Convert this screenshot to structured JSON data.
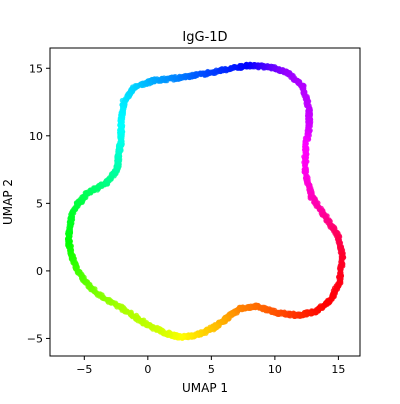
{
  "chart_data": {
    "type": "scatter",
    "title": "IgG-1D",
    "xlabel": "UMAP 1",
    "ylabel": "UMAP 2",
    "xlim": [
      -7.7,
      16.7
    ],
    "ylim": [
      -6.3,
      16.5
    ],
    "xticks": [
      -5,
      0,
      5,
      10,
      15
    ],
    "yticks": [
      -5,
      0,
      5,
      10,
      15
    ],
    "grid": false,
    "legend": "none",
    "colormap": "hsv",
    "series": [
      {
        "closed": true,
        "x": [
          7.9,
          9.6,
          11.0,
          12.2,
          12.7,
          12.7,
          12.4,
          12.4,
          12.9,
          14.0,
          15.0,
          15.3,
          15.1,
          14.4,
          13.2,
          11.8,
          10.2,
          8.5,
          7.2,
          6.2,
          5.2,
          3.7,
          2.5,
          1.4,
          0.0,
          -2.0,
          -4.0,
          -5.2,
          -5.9,
          -6.2,
          -6.2,
          -5.9,
          -4.8,
          -3.3,
          -2.4,
          -2.3,
          -2.1,
          -2.1,
          -1.9,
          -1.1,
          0.5,
          2.5,
          4.5,
          6.5
        ],
        "y": [
          15.2,
          15.1,
          14.7,
          13.6,
          12.0,
          10.5,
          9.2,
          7.2,
          5.5,
          4.0,
          2.5,
          1.0,
          -0.8,
          -2.1,
          -3.0,
          -3.3,
          -3.1,
          -2.6,
          -2.8,
          -3.5,
          -4.2,
          -4.8,
          -4.9,
          -4.6,
          -4.0,
          -2.8,
          -1.7,
          -0.5,
          0.8,
          2.0,
          3.0,
          4.5,
          5.7,
          6.5,
          7.5,
          8.6,
          9.6,
          11.0,
          12.5,
          13.6,
          14.1,
          14.3,
          14.6,
          15.0
        ],
        "hues": [
          240,
          260,
          275,
          282,
          285,
          290,
          300,
          305,
          315,
          325,
          340,
          350,
          355,
          358,
          3,
          10,
          18,
          25,
          30,
          38,
          45,
          52,
          60,
          68,
          75,
          80,
          90,
          100,
          110,
          118,
          125,
          130,
          140,
          150,
          158,
          166,
          174,
          180,
          185,
          190,
          200,
          210,
          222,
          232
        ]
      }
    ]
  }
}
